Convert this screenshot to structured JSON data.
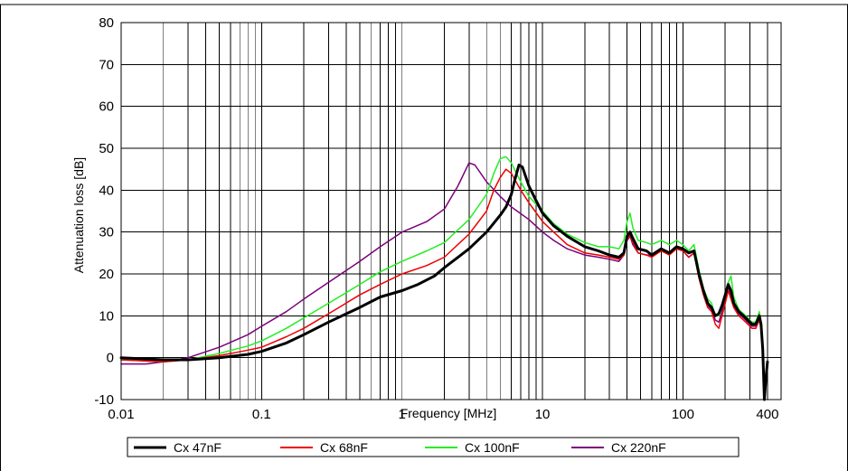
{
  "chart_data": {
    "type": "line",
    "xlabel": "Frequency [MHz]",
    "ylabel": "Attenuation loss [dB]",
    "x_scale": "log",
    "xlim": [
      0.01,
      500
    ],
    "ylim": [
      -10,
      80
    ],
    "x_ticks": [
      {
        "value": 0.01,
        "label": "0.01"
      },
      {
        "value": 0.1,
        "label": "0.1"
      },
      {
        "value": 1,
        "label": "1"
      },
      {
        "value": 10,
        "label": "10"
      },
      {
        "value": 100,
        "label": "100"
      },
      {
        "value": 400,
        "label": "400"
      }
    ],
    "y_ticks": [
      -10,
      0,
      10,
      20,
      30,
      40,
      50,
      60,
      70,
      80
    ],
    "grid": true,
    "legend_position": "bottom",
    "series": [
      {
        "name": "Cx 47nF",
        "color": "#000000",
        "width": 3,
        "points": [
          [
            0.01,
            0
          ],
          [
            0.02,
            -0.5
          ],
          [
            0.03,
            -0.5
          ],
          [
            0.05,
            0
          ],
          [
            0.08,
            0.8
          ],
          [
            0.1,
            1.5
          ],
          [
            0.15,
            3.5
          ],
          [
            0.2,
            5.5
          ],
          [
            0.3,
            8.5
          ],
          [
            0.5,
            12
          ],
          [
            0.7,
            14.5
          ],
          [
            1,
            16
          ],
          [
            1.3,
            17.5
          ],
          [
            1.7,
            19.5
          ],
          [
            2,
            21.5
          ],
          [
            3,
            26
          ],
          [
            4,
            30
          ],
          [
            5,
            34
          ],
          [
            5.5,
            36
          ],
          [
            6,
            39
          ],
          [
            6.3,
            42
          ],
          [
            6.8,
            46
          ],
          [
            7.2,
            45.5
          ],
          [
            8,
            41
          ],
          [
            9,
            37.5
          ],
          [
            10,
            34.5
          ],
          [
            12,
            31.5
          ],
          [
            15,
            29
          ],
          [
            20,
            26.5
          ],
          [
            25,
            25.5
          ],
          [
            30,
            24.5
          ],
          [
            35,
            24
          ],
          [
            38,
            25
          ],
          [
            40,
            29
          ],
          [
            42,
            30
          ],
          [
            44,
            28.5
          ],
          [
            48,
            26
          ],
          [
            55,
            25.5
          ],
          [
            60,
            24.5
          ],
          [
            70,
            26
          ],
          [
            80,
            25
          ],
          [
            90,
            26.5
          ],
          [
            100,
            26
          ],
          [
            110,
            25
          ],
          [
            120,
            25.5
          ],
          [
            130,
            20
          ],
          [
            140,
            16
          ],
          [
            150,
            13
          ],
          [
            160,
            12
          ],
          [
            170,
            10
          ],
          [
            180,
            10.5
          ],
          [
            190,
            12.5
          ],
          [
            200,
            15
          ],
          [
            210,
            17.5
          ],
          [
            220,
            16
          ],
          [
            230,
            13
          ],
          [
            250,
            11
          ],
          [
            270,
            10
          ],
          [
            290,
            9
          ],
          [
            310,
            8
          ],
          [
            330,
            8
          ],
          [
            350,
            10
          ],
          [
            360,
            8
          ],
          [
            370,
            2
          ],
          [
            380,
            -10
          ],
          [
            390,
            -5
          ],
          [
            400,
            -1
          ]
        ]
      },
      {
        "name": "Cx 68nF",
        "color": "#ee0000",
        "width": 1.5,
        "points": [
          [
            0.01,
            -0.5
          ],
          [
            0.02,
            -1
          ],
          [
            0.03,
            -0.5
          ],
          [
            0.05,
            0.5
          ],
          [
            0.08,
            1.8
          ],
          [
            0.1,
            2.5
          ],
          [
            0.15,
            5
          ],
          [
            0.2,
            7
          ],
          [
            0.3,
            10.5
          ],
          [
            0.5,
            15
          ],
          [
            0.7,
            17.5
          ],
          [
            1,
            20
          ],
          [
            1.5,
            22
          ],
          [
            2,
            24
          ],
          [
            3,
            29.5
          ],
          [
            4,
            35
          ],
          [
            4.5,
            40
          ],
          [
            5,
            43
          ],
          [
            5.5,
            45
          ],
          [
            6,
            44
          ],
          [
            7,
            40
          ],
          [
            8,
            37
          ],
          [
            10,
            32.5
          ],
          [
            12,
            30
          ],
          [
            15,
            27
          ],
          [
            20,
            25
          ],
          [
            25,
            24.5
          ],
          [
            30,
            24
          ],
          [
            35,
            23.5
          ],
          [
            38,
            24.5
          ],
          [
            40,
            28
          ],
          [
            42,
            29.5
          ],
          [
            44,
            27.5
          ],
          [
            48,
            25
          ],
          [
            55,
            24.5
          ],
          [
            60,
            24
          ],
          [
            70,
            25.5
          ],
          [
            80,
            24.5
          ],
          [
            90,
            26
          ],
          [
            100,
            25.5
          ],
          [
            110,
            24
          ],
          [
            120,
            25
          ],
          [
            130,
            19
          ],
          [
            140,
            15
          ],
          [
            150,
            12
          ],
          [
            160,
            11
          ],
          [
            170,
            8
          ],
          [
            180,
            7
          ],
          [
            190,
            10
          ],
          [
            200,
            13
          ],
          [
            210,
            16
          ],
          [
            220,
            14
          ],
          [
            230,
            12
          ],
          [
            250,
            10
          ],
          [
            270,
            9
          ],
          [
            290,
            8
          ],
          [
            310,
            7
          ],
          [
            330,
            7
          ],
          [
            350,
            9
          ],
          [
            360,
            7
          ],
          [
            370,
            1
          ],
          [
            380,
            -9
          ],
          [
            390,
            -4
          ],
          [
            400,
            -1.5
          ]
        ]
      },
      {
        "name": "Cx 100nF",
        "color": "#22ee22",
        "width": 1.5,
        "points": [
          [
            0.01,
            -0.5
          ],
          [
            0.02,
            -1
          ],
          [
            0.03,
            -0.5
          ],
          [
            0.05,
            1
          ],
          [
            0.08,
            2.8
          ],
          [
            0.1,
            4
          ],
          [
            0.15,
            7
          ],
          [
            0.2,
            9.5
          ],
          [
            0.3,
            13
          ],
          [
            0.5,
            17.5
          ],
          [
            0.7,
            20.5
          ],
          [
            1,
            23
          ],
          [
            1.5,
            25.5
          ],
          [
            2,
            27.5
          ],
          [
            3,
            33
          ],
          [
            4,
            39
          ],
          [
            4.5,
            44
          ],
          [
            5,
            47.5
          ],
          [
            5.5,
            48
          ],
          [
            6,
            46.5
          ],
          [
            7,
            42
          ],
          [
            8,
            38.5
          ],
          [
            10,
            35
          ],
          [
            12,
            32
          ],
          [
            15,
            29.5
          ],
          [
            20,
            27.5
          ],
          [
            25,
            26.5
          ],
          [
            30,
            26.5
          ],
          [
            35,
            26
          ],
          [
            38,
            28
          ],
          [
            40,
            32.5
          ],
          [
            42,
            34.5
          ],
          [
            44,
            31
          ],
          [
            48,
            28
          ],
          [
            55,
            27.5
          ],
          [
            60,
            27
          ],
          [
            70,
            28
          ],
          [
            80,
            27
          ],
          [
            90,
            28
          ],
          [
            100,
            27
          ],
          [
            110,
            25.5
          ],
          [
            120,
            27
          ],
          [
            130,
            21
          ],
          [
            140,
            16.5
          ],
          [
            150,
            14
          ],
          [
            160,
            13
          ],
          [
            170,
            10
          ],
          [
            180,
            10
          ],
          [
            190,
            12
          ],
          [
            200,
            14.5
          ],
          [
            210,
            18
          ],
          [
            220,
            19.5
          ],
          [
            230,
            14.5
          ],
          [
            250,
            11.5
          ],
          [
            270,
            10.5
          ],
          [
            290,
            9.5
          ],
          [
            310,
            8.5
          ],
          [
            330,
            8.5
          ],
          [
            350,
            11
          ],
          [
            360,
            8
          ],
          [
            370,
            2
          ],
          [
            380,
            -10
          ],
          [
            390,
            -5
          ],
          [
            400,
            -1
          ]
        ]
      },
      {
        "name": "Cx 220nF",
        "color": "#7b007b",
        "width": 1.5,
        "points": [
          [
            0.01,
            -1.5
          ],
          [
            0.015,
            -1.5
          ],
          [
            0.02,
            -1
          ],
          [
            0.03,
            0
          ],
          [
            0.05,
            2.5
          ],
          [
            0.08,
            5.5
          ],
          [
            0.1,
            7.5
          ],
          [
            0.15,
            11
          ],
          [
            0.2,
            14
          ],
          [
            0.3,
            18
          ],
          [
            0.5,
            23
          ],
          [
            0.7,
            26.5
          ],
          [
            1,
            30
          ],
          [
            1.5,
            32.5
          ],
          [
            2,
            35.5
          ],
          [
            2.5,
            41
          ],
          [
            3,
            46.5
          ],
          [
            3.3,
            46
          ],
          [
            4,
            42
          ],
          [
            5,
            38.5
          ],
          [
            6,
            36
          ],
          [
            8,
            33
          ],
          [
            10,
            30
          ],
          [
            12,
            28
          ],
          [
            15,
            26
          ],
          [
            20,
            24.5
          ],
          [
            25,
            24
          ],
          [
            30,
            23.5
          ],
          [
            35,
            23
          ],
          [
            38,
            24.5
          ],
          [
            40,
            28
          ],
          [
            42,
            29
          ],
          [
            44,
            27
          ],
          [
            48,
            25
          ],
          [
            55,
            24.5
          ],
          [
            60,
            24.5
          ],
          [
            70,
            25.5
          ],
          [
            80,
            25
          ],
          [
            90,
            26
          ],
          [
            100,
            25.5
          ],
          [
            110,
            24
          ],
          [
            120,
            25
          ],
          [
            130,
            19.5
          ],
          [
            140,
            15.5
          ],
          [
            150,
            12.5
          ],
          [
            160,
            11.5
          ],
          [
            170,
            9
          ],
          [
            180,
            8.5
          ],
          [
            190,
            11
          ],
          [
            200,
            14
          ],
          [
            210,
            17
          ],
          [
            220,
            15
          ],
          [
            230,
            12.5
          ],
          [
            250,
            10.5
          ],
          [
            270,
            9.5
          ],
          [
            290,
            8.5
          ],
          [
            310,
            7.5
          ],
          [
            330,
            7.5
          ],
          [
            350,
            9.5
          ],
          [
            360,
            7
          ],
          [
            370,
            1
          ],
          [
            380,
            -8
          ],
          [
            390,
            -4
          ],
          [
            400,
            -1.5
          ]
        ]
      }
    ]
  }
}
